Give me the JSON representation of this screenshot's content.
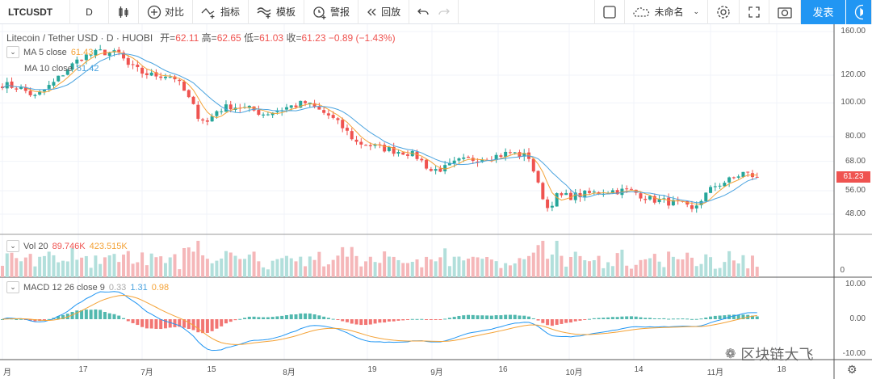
{
  "toolbar": {
    "symbol": "LTCUSDT",
    "interval": "D",
    "compare": "对比",
    "indicators": "指标",
    "templates": "模板",
    "alert": "警报",
    "replay": "回放",
    "layout_name": "未命名",
    "publish": "发表"
  },
  "legend": {
    "title": "Litecoin / Tether USD · D · HUOBI",
    "open_label": "开=",
    "open": "62.11",
    "high_label": "高=",
    "high": "62.65",
    "low_label": "低=",
    "low": "61.03",
    "close_label": "收=",
    "close": "61.23",
    "change": "−0.89 (−1.43%)",
    "ma5": "MA 5 close",
    "ma5_val": "61.43",
    "ma10": "MA 10 close",
    "ma10_val": "61.42",
    "vol": "Vol 20",
    "vol_val1": "89.746K",
    "vol_val2": "423.515K",
    "macd": "MACD 12 26 close 9",
    "macd_hist": "0.33",
    "macd_line": "1.31",
    "macd_signal": "0.98"
  },
  "price_axis": [
    "160.00",
    "120.00",
    "100.00",
    "80.00",
    "68.00",
    "56.00",
    "48.00"
  ],
  "price_axis_values": [
    160,
    120,
    100,
    80,
    68,
    56,
    48
  ],
  "last_price": "61.23",
  "vol_axis": "0",
  "macd_axis": [
    "10.00",
    "0.00",
    "-10.00"
  ],
  "time_axis": [
    "月",
    "17",
    "7月",
    "15",
    "8月",
    "19",
    "9月",
    "16",
    "10月",
    "14",
    "11月",
    "18"
  ],
  "watermark": "区块链大飞",
  "colors": {
    "up": "#26a69a",
    "down": "#ef5350",
    "ma5": "#f4a236",
    "ma10": "#4aa3df",
    "accent": "#2196f3"
  },
  "chart_data": {
    "type": "candlestick",
    "anchors": [
      [
        0,
        113
      ],
      [
        4,
        110
      ],
      [
        7,
        104
      ],
      [
        11,
        114
      ],
      [
        14,
        125
      ],
      [
        17,
        135
      ],
      [
        21,
        140
      ],
      [
        25,
        138
      ],
      [
        27,
        128
      ],
      [
        30,
        122
      ],
      [
        32,
        120
      ],
      [
        35,
        120
      ],
      [
        37,
        118
      ],
      [
        39,
        108
      ],
      [
        42,
        92
      ],
      [
        44,
        88
      ],
      [
        46,
        95
      ],
      [
        49,
        98
      ],
      [
        53,
        96
      ],
      [
        56,
        93
      ],
      [
        59,
        95
      ],
      [
        61,
        97
      ],
      [
        65,
        100
      ],
      [
        68,
        95
      ],
      [
        70,
        92
      ],
      [
        73,
        85
      ],
      [
        76,
        77
      ],
      [
        80,
        75
      ],
      [
        84,
        73
      ],
      [
        87,
        72
      ],
      [
        89,
        70
      ],
      [
        92,
        64
      ],
      [
        95,
        65
      ],
      [
        98,
        68
      ],
      [
        101,
        69
      ],
      [
        105,
        70
      ],
      [
        109,
        72
      ],
      [
        113,
        70
      ],
      [
        115,
        58
      ],
      [
        117,
        50
      ],
      [
        119,
        54
      ],
      [
        122,
        54
      ],
      [
        126,
        55
      ],
      [
        131,
        56
      ],
      [
        135,
        56
      ],
      [
        139,
        53
      ],
      [
        143,
        52
      ],
      [
        146,
        51
      ],
      [
        148,
        49
      ],
      [
        150,
        53
      ],
      [
        153,
        58
      ],
      [
        156,
        60
      ],
      [
        159,
        63
      ],
      [
        162,
        61.23
      ]
    ]
  }
}
